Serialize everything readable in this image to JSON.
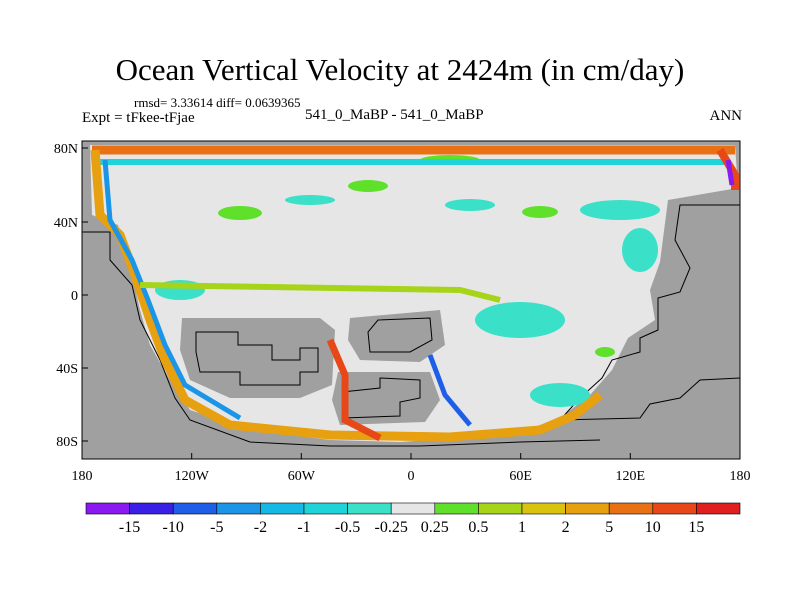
{
  "title": "Ocean Vertical Velocity at 2424m (in cm/day)",
  "stats": "rmsd= 3.33614  diff= 0.0639365",
  "expt": "Expt = tFkee-tFjae",
  "center_label": "541_0_MaBP - 541_0_MaBP",
  "season": "ANN",
  "lat_ticks": [
    "80N",
    "40N",
    "0",
    "40S",
    "80S"
  ],
  "lon_ticks": [
    "180",
    "120W",
    "60W",
    "0",
    "60E",
    "120E",
    "180"
  ],
  "colorbar": {
    "labels": [
      "-15",
      "-10",
      "-5",
      "-2",
      "-1",
      "-0.5",
      "-0.25",
      "0.25",
      "0.5",
      "1",
      "2",
      "5",
      "10",
      "15"
    ],
    "colors": [
      "#8a1aef",
      "#3a20e6",
      "#1f5fe8",
      "#1a95e8",
      "#16b9e6",
      "#1fd4d8",
      "#3ae0c8",
      "#e6e6e6",
      "#5fe02a",
      "#a6d418",
      "#d8c40f",
      "#e6a010",
      "#ea7014",
      "#e84818",
      "#e02020"
    ]
  },
  "land_color": "#a0a0a0"
}
